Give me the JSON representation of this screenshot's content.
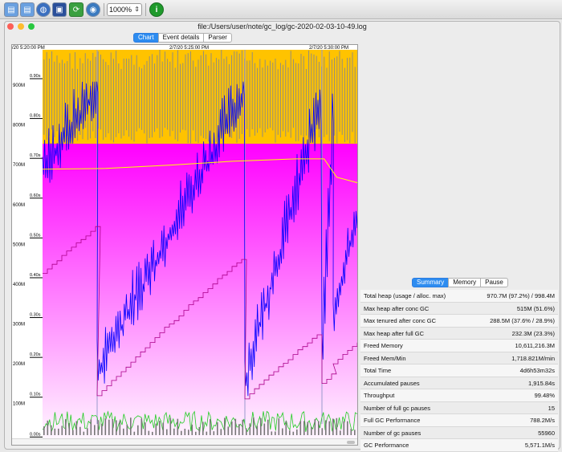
{
  "toolbar": {
    "zoom_value": "1000%",
    "icons": [
      "open-file-icon",
      "open-recent-icon",
      "open-url-icon",
      "save-icon",
      "refresh-icon",
      "watch-icon",
      "about-icon"
    ]
  },
  "window": {
    "title": "file:/Users/user/note/gc_log/gc-2020-02-03-10-49.log"
  },
  "main_tabs": [
    {
      "label": "Chart",
      "active": true
    },
    {
      "label": "Event details",
      "active": false
    },
    {
      "label": "Parser",
      "active": false
    }
  ],
  "chart": {
    "time_labels": [
      "/20 5:20:00 PM",
      "2/7/20 5:25:00 PM",
      "2/7/20 5:30:00 PM"
    ],
    "memory_ticks": [
      "900M",
      "800M",
      "700M",
      "600M",
      "500M",
      "400M",
      "300M",
      "200M",
      "100M",
      "0M"
    ],
    "pause_ticks": [
      "0.90s",
      "0.80s",
      "0.70s",
      "0.60s",
      "0.50s",
      "0.40s",
      "0.30s",
      "0.20s",
      "0.10s",
      "0.00s"
    ],
    "colors": {
      "total_heap": "#ffff00",
      "young_used_top": "#ff00ff",
      "young_used_bottom": "#fff7ff",
      "used_heap": "#0000ff",
      "tenured": "#aa0088",
      "full_gc": "#888888",
      "pause": "#22cc22",
      "yellow_band": "#ffc300"
    }
  },
  "chart_data": {
    "type": "line",
    "title": "",
    "xlabel": "",
    "ylabel": "",
    "x_tick_labels": [
      "/20 5:20:00 PM",
      "2/7/20 5:25:00 PM",
      "2/7/20 5:30:00 PM"
    ],
    "ylim": [
      0,
      980
    ],
    "y_unit": "M",
    "y2lim": [
      0,
      0.98
    ],
    "y2_unit": "s",
    "series": [
      {
        "values": [
          [
            0,
            680
          ],
          [
            20,
            682
          ],
          [
            40,
            690
          ],
          [
            60,
            700
          ],
          [
            80,
            706
          ],
          [
            89,
            706
          ],
          [
            93,
            660
          ],
          [
            100,
            645
          ]
        ]
      }
    ]
  },
  "summary": {
    "tabs": [
      {
        "label": "Summary",
        "active": true
      },
      {
        "label": "Memory",
        "active": false
      },
      {
        "label": "Pause",
        "active": false
      }
    ],
    "rows": [
      {
        "label": "Total heap (usage / alloc. max)",
        "value": "970.7M (97.2%) / 998.4M"
      },
      {
        "label": "Max heap after conc GC",
        "value": "515M (51.6%)"
      },
      {
        "label": "Max tenured after conc GC",
        "value": "288.5M (37.6% / 28.9%)"
      },
      {
        "label": "Max heap after full GC",
        "value": "232.3M (23.3%)"
      },
      {
        "label": "Freed Memory",
        "value": "10,611,216.3M"
      },
      {
        "label": "Freed Mem/Min",
        "value": "1,718.821M/min"
      },
      {
        "label": "Total Time",
        "value": "4d6h53m32s"
      },
      {
        "label": "Accumulated pauses",
        "value": "1,915.84s"
      },
      {
        "label": "Throughput",
        "value": "99.48%"
      },
      {
        "label": "Number of full gc pauses",
        "value": "15"
      },
      {
        "label": "Full GC Performance",
        "value": "788.2M/s"
      },
      {
        "label": "Number of gc pauses",
        "value": "55960"
      },
      {
        "label": "GC Performance",
        "value": "5,571.1M/s"
      }
    ]
  }
}
